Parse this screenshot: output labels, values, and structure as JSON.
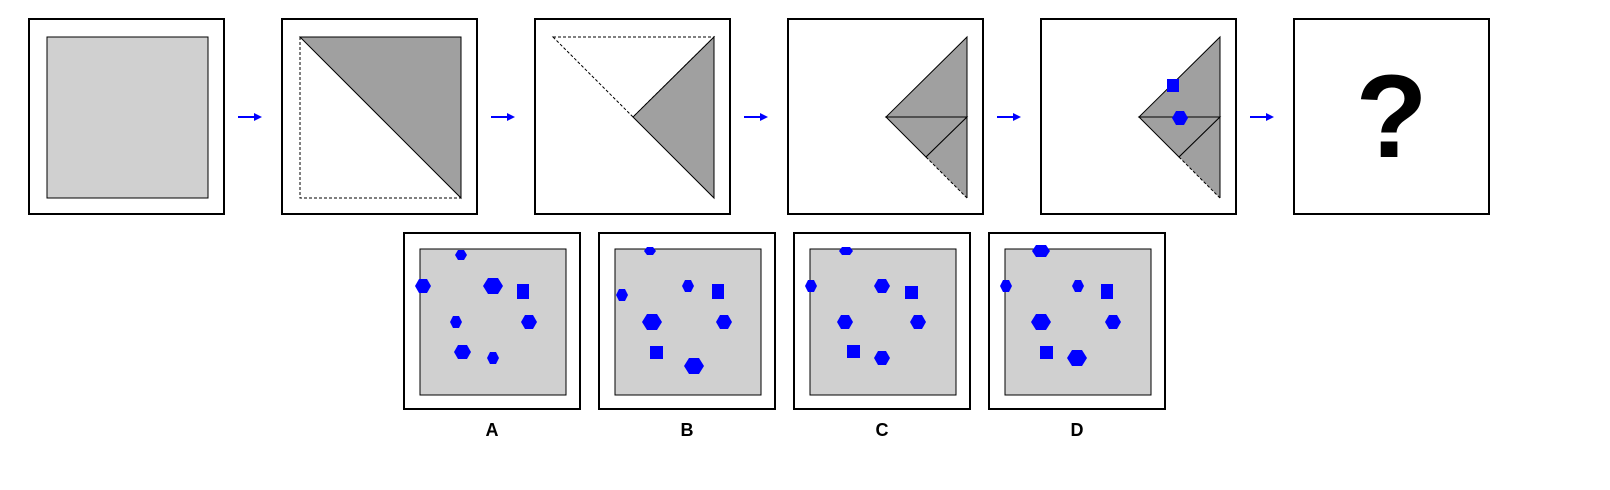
{
  "question_mark": "?",
  "colors": {
    "paper": "#d0d0d0",
    "folded": "#a0a0a0",
    "arrow": "#0000ff",
    "hole": "#0000ff"
  },
  "options": [
    {
      "label": "A"
    },
    {
      "label": "B"
    },
    {
      "label": "C"
    },
    {
      "label": "D"
    }
  ]
}
